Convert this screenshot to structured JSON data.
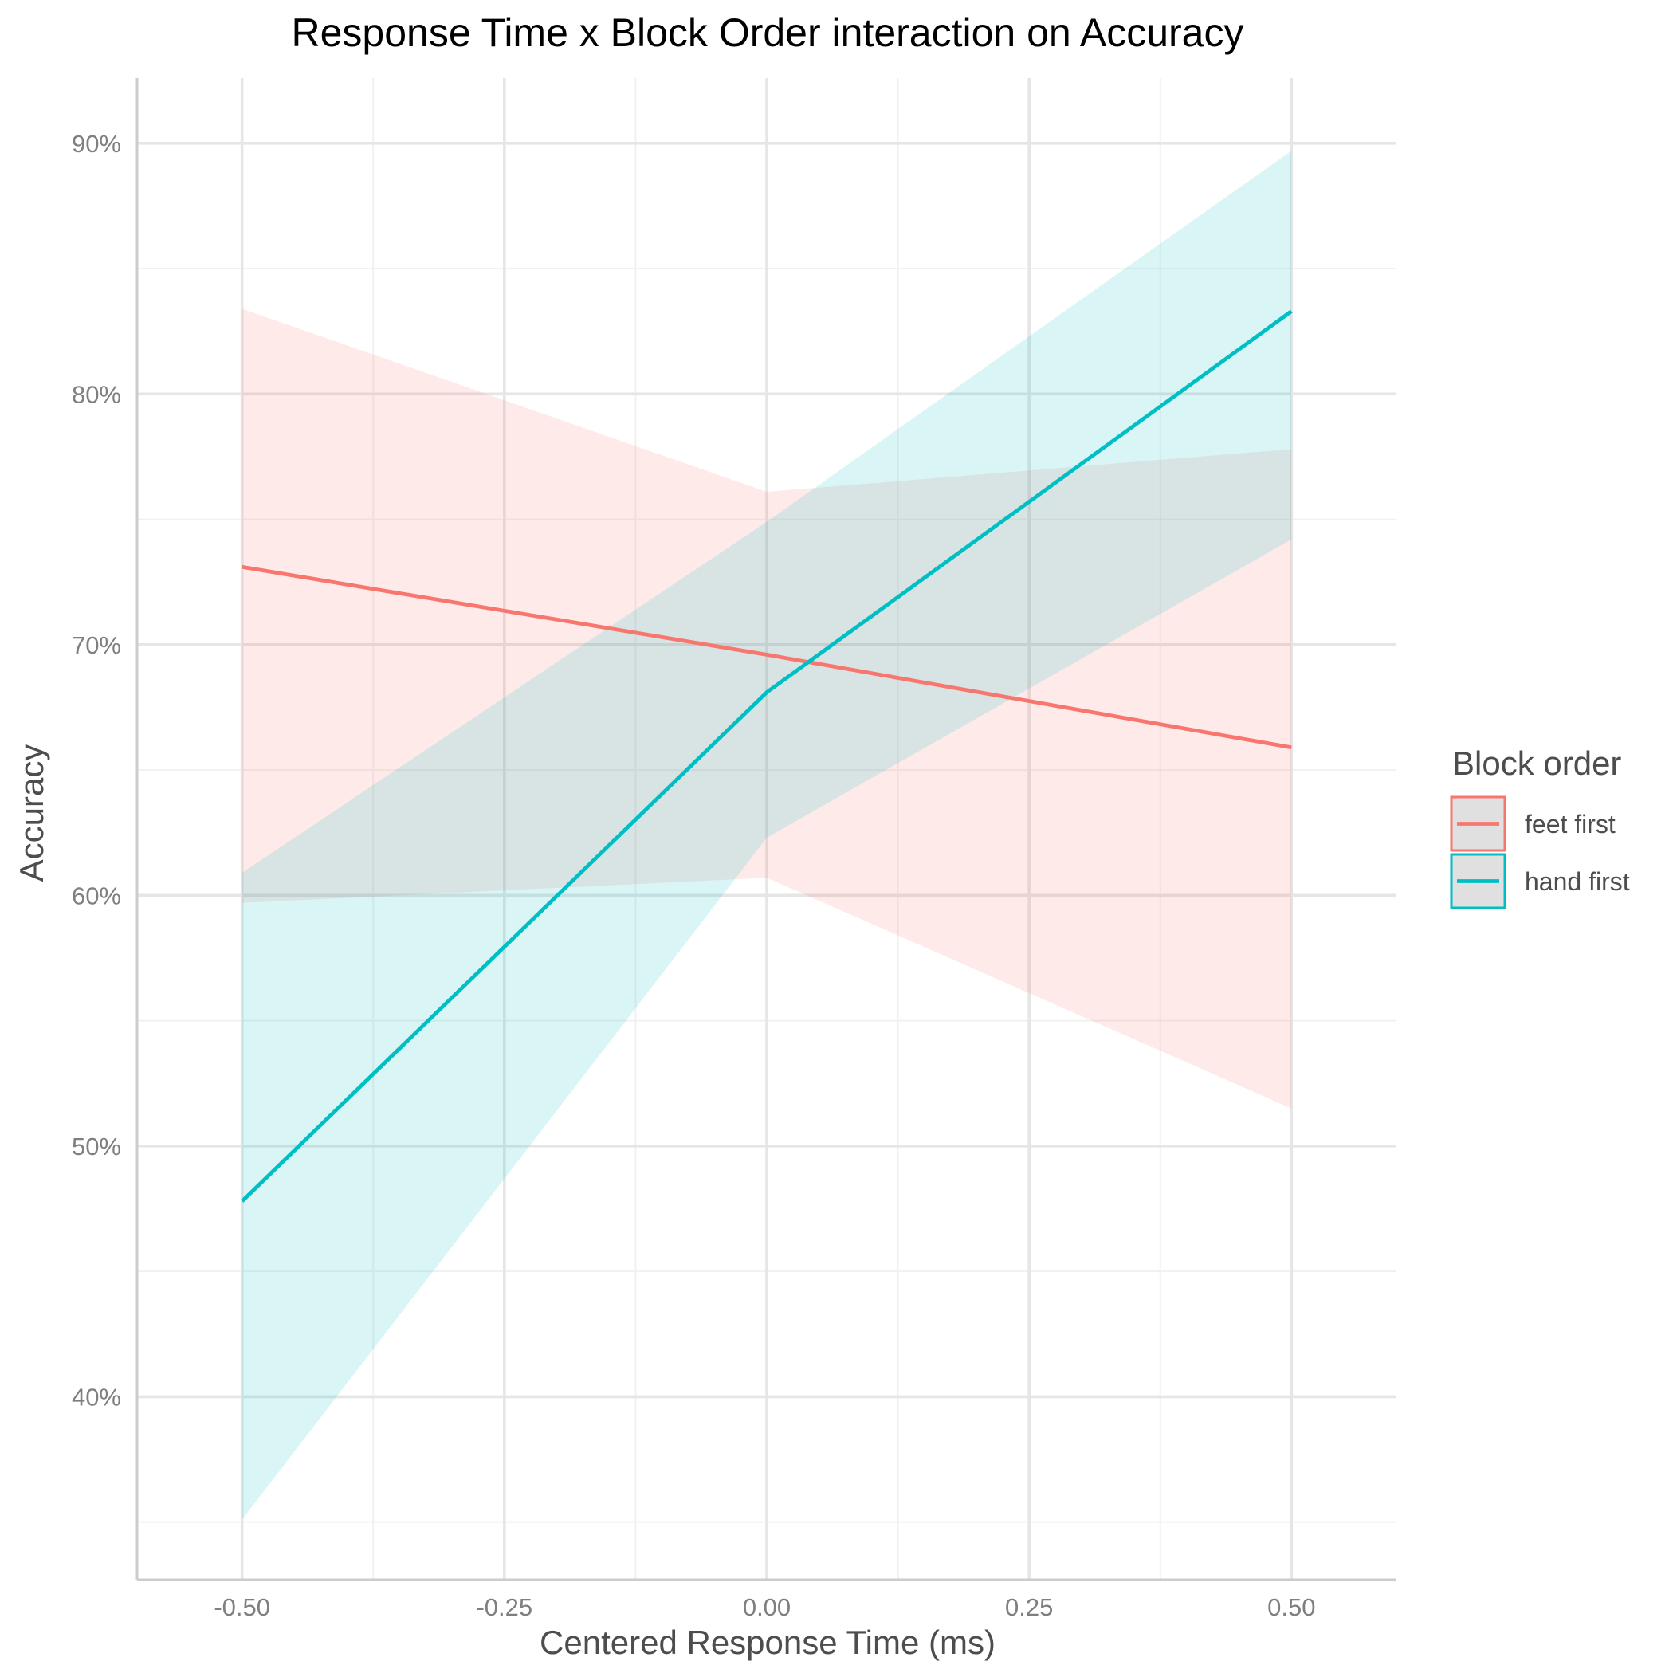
{
  "chart_data": {
    "type": "line",
    "title": "Response Time x Block Order interaction on Accuracy",
    "xlabel": "Centered Response Time (ms)",
    "ylabel": "Accuracy",
    "x": [
      -0.5,
      0.0,
      0.5
    ],
    "x_ticks": [
      "-0.50",
      "-0.25",
      "0.00",
      "0.25",
      "0.50"
    ],
    "x_tick_values": [
      -0.5,
      -0.25,
      0.0,
      0.25,
      0.5
    ],
    "y_ticks": [
      "40%",
      "50%",
      "60%",
      "70%",
      "80%",
      "90%"
    ],
    "y_tick_values": [
      0.4,
      0.5,
      0.6,
      0.7,
      0.8,
      0.9
    ],
    "xlim": [
      -0.6,
      0.6
    ],
    "ylim": [
      0.327,
      0.926
    ],
    "grid": true,
    "legend": {
      "title": "Block order",
      "position": "right"
    },
    "series": [
      {
        "name": "feet first",
        "color": "#F8766D",
        "values": [
          0.731,
          0.696,
          0.659
        ],
        "ci_low": [
          0.597,
          0.607,
          0.515
        ],
        "ci_high": [
          0.834,
          0.761,
          0.778
        ]
      },
      {
        "name": "hand first",
        "color": "#00BFC4",
        "values": [
          0.478,
          0.681,
          0.833
        ],
        "ci_low": [
          0.351,
          0.623,
          0.742
        ],
        "ci_high": [
          0.609,
          0.749,
          0.897
        ]
      }
    ]
  }
}
